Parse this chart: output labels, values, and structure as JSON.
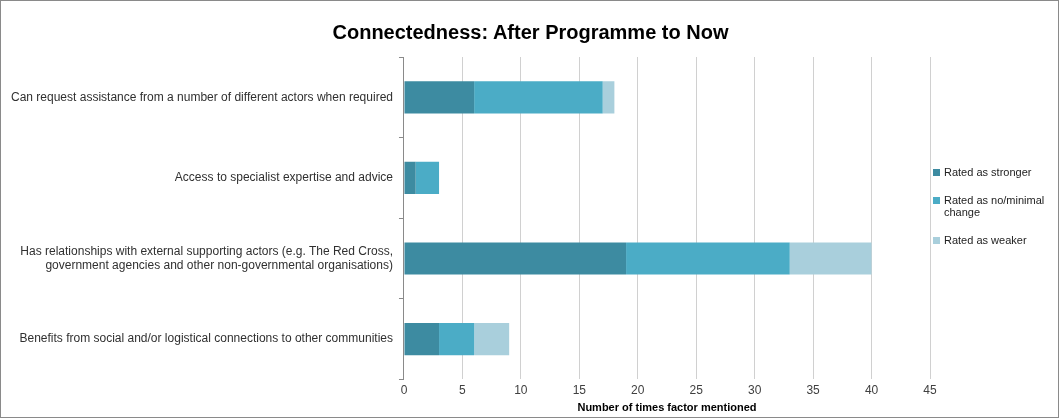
{
  "chart_data": {
    "type": "bar",
    "orientation": "horizontal",
    "stacked": true,
    "title": "Connectedness: After Programme to Now",
    "xlabel": "Number of times factor mentioned",
    "categories": [
      "Can request assistance from a number of different actors when required",
      "Access to specialist expertise and advice",
      "Has relationships with external supporting actors (e.g. The Red Cross, government agencies and other non-governmental organisations)",
      "Benefits from social and/or logistical connections to other communities"
    ],
    "series": [
      {
        "name": "Rated as stronger",
        "color": "#3d8ba1",
        "values": [
          6,
          1,
          19,
          3
        ]
      },
      {
        "name": "Rated as no/minimal change",
        "color": "#4bacc6",
        "values": [
          11,
          2,
          14,
          3
        ]
      },
      {
        "name": "Rated as weaker",
        "color": "#a9cfdc",
        "values": [
          1,
          null,
          7,
          3
        ]
      }
    ],
    "xlim": [
      0,
      45
    ],
    "xticks": [
      0,
      5,
      10,
      15,
      20,
      25,
      30,
      35,
      40,
      45
    ],
    "grid": "x",
    "legend": "right"
  }
}
